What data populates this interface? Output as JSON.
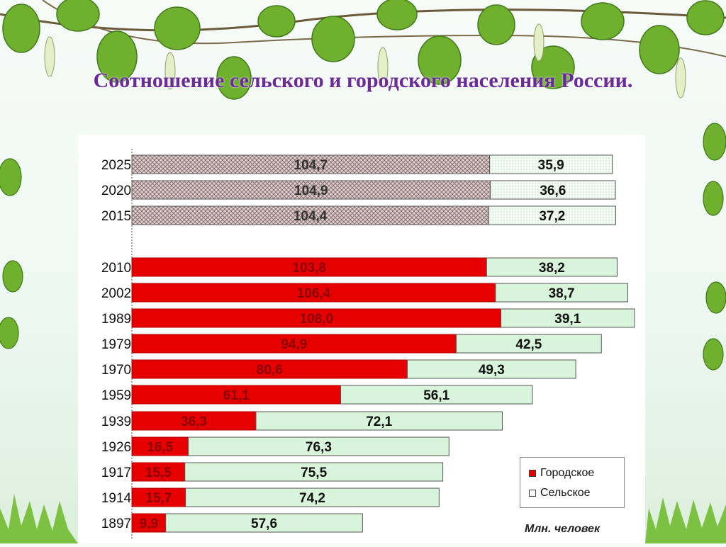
{
  "slide": {
    "title": "Соотношение сельского и городского населения России."
  },
  "colors": {
    "urban": "#e60000",
    "rural": "#d8f5dc",
    "forecast_urban": "#c9b8b8",
    "title": "#6b2a9a"
  },
  "decorations": [
    "birch-leaves",
    "grass-border"
  ],
  "chart_data": {
    "type": "bar",
    "orientation": "horizontal",
    "stacked": true,
    "categories": [
      "2025",
      "2020",
      "2015",
      "2010",
      "2002",
      "1989",
      "1979",
      "1970",
      "1959",
      "1939",
      "1926",
      "1917",
      "1914",
      "1897"
    ],
    "series": [
      {
        "name": "Городское",
        "values": [
          104.7,
          104.9,
          104.4,
          103.8,
          106.4,
          108.0,
          94.9,
          80.6,
          61.1,
          36.3,
          16.5,
          15.5,
          15.7,
          9.9
        ]
      },
      {
        "name": "Сельское",
        "values": [
          35.9,
          36.6,
          37.2,
          38.2,
          38.7,
          39.1,
          42.5,
          49.3,
          56.1,
          72.1,
          76.3,
          75.5,
          74.2,
          57.6
        ]
      }
    ],
    "value_labels": {
      "urban": [
        "104,7",
        "104,9",
        "104,4",
        "103,8",
        "106,4",
        "108,0",
        "94,9",
        "80,6",
        "61,1",
        "36,3",
        "16,5",
        "15,5",
        "15,7",
        "9,9"
      ],
      "rural": [
        "35,9",
        "36,6",
        "37,2",
        "38,2",
        "38,7",
        "39,1",
        "42,5",
        "49,3",
        "56,1",
        "72,1",
        "76,3",
        "75,5",
        "74,2",
        "57,6"
      ]
    },
    "forecast_categories": [
      "2025",
      "2020",
      "2015"
    ],
    "units_label": "Млн. человек",
    "legend": [
      "Городское",
      "Сельское"
    ],
    "legend_position": "bottom-right",
    "xlim": [
      0,
      150
    ],
    "grid": false
  }
}
